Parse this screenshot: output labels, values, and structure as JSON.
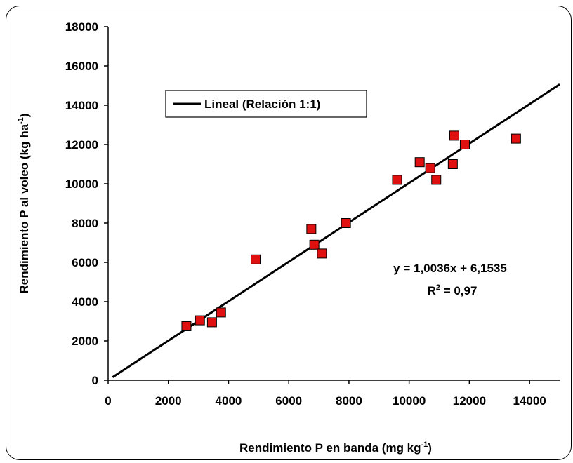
{
  "chart_data": {
    "type": "scatter",
    "xlabel": "Rendimiento P en banda (mg kg",
    "xlabel_sup": "-1",
    "xlabel_end": ")",
    "ylabel": "Rendimiento P al voleo (kg ha",
    "ylabel_sup": "-1",
    "ylabel_end": ")",
    "xlim": [
      0,
      15000
    ],
    "ylim": [
      0,
      18000
    ],
    "x_ticks": [
      "0",
      "2000",
      "4000",
      "6000",
      "8000",
      "10000",
      "12000",
      "14000"
    ],
    "y_ticks": [
      "0",
      "2000",
      "4000",
      "6000",
      "8000",
      "10000",
      "12000",
      "14000",
      "16000",
      "18000"
    ],
    "marker_color": "#e01010",
    "series": [
      {
        "x": [
          2600,
          3050,
          3450,
          3750,
          4900,
          6750,
          6850,
          7100,
          7900,
          9600,
          10350,
          10700,
          10900,
          11450,
          11500,
          11850,
          13550
        ],
        "y": [
          2750,
          3050,
          2950,
          3450,
          6150,
          7700,
          6900,
          6450,
          8000,
          10200,
          11100,
          10800,
          10200,
          11000,
          12450,
          12000,
          12300
        ]
      }
    ],
    "trendline": {
      "legend_label": "Lineal (Relación 1:1)",
      "slope": 1.0036,
      "intercept": 6.1535,
      "x_range": [
        150,
        15000
      ],
      "color": "#000000"
    },
    "equation": "y = 1,0036x + 6,1535",
    "r2_prefix": "R",
    "r2_sup": "2",
    "r2_value": " = 0,97",
    "legend_position": "top-left",
    "grid": false
  }
}
